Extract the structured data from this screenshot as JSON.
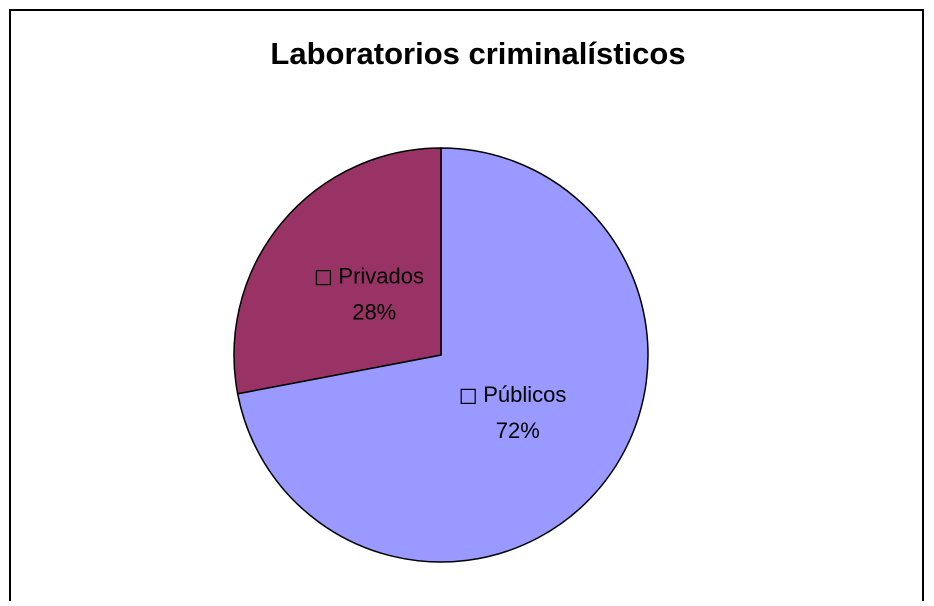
{
  "chart_data": {
    "type": "pie",
    "title": "Laboratorios criminalísticos",
    "categories": [
      "Públicos",
      "Privados"
    ],
    "values": [
      72,
      28
    ],
    "value_labels": [
      "72%",
      "28%"
    ],
    "colors": [
      "#9999ff",
      "#993366"
    ]
  }
}
